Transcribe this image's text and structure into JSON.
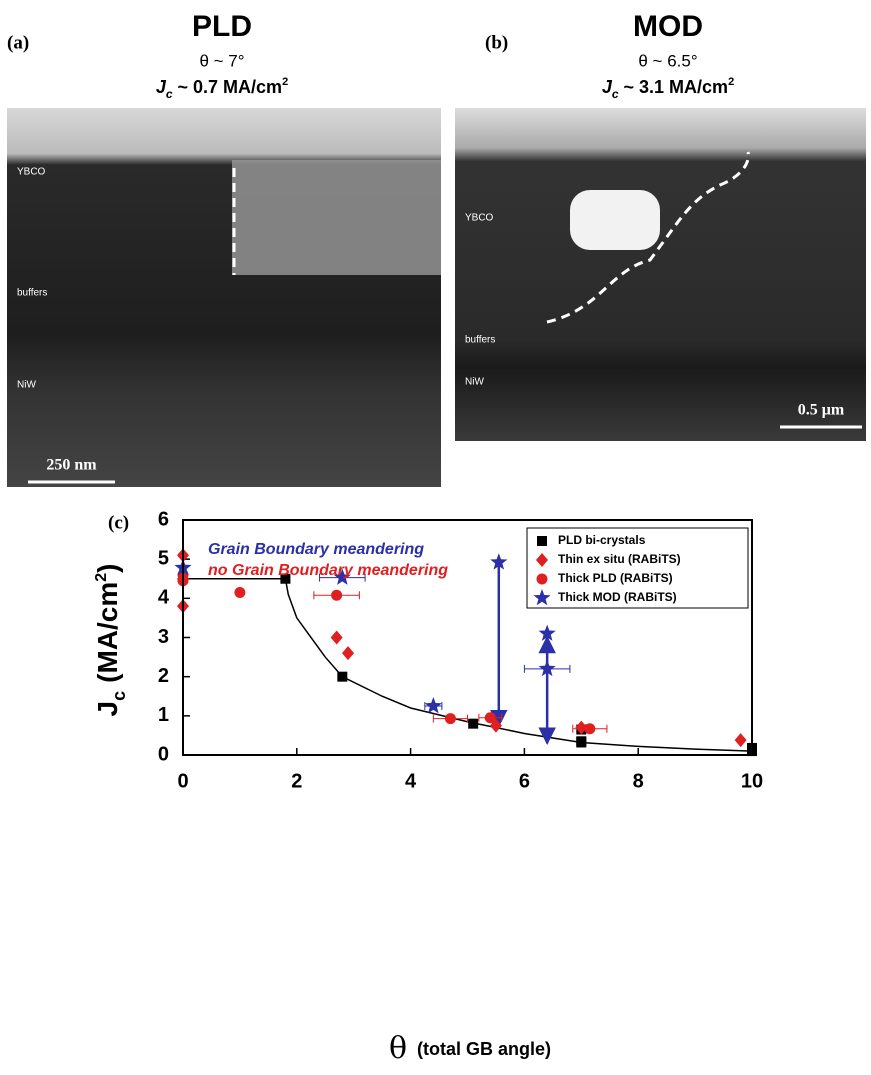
{
  "panels": [
    {
      "label": "(a)",
      "title": "PLD",
      "angle": "θ ~ 7°",
      "jc": [
        "J",
        "c",
        " ~ 0.7 MA/cm",
        "2"
      ],
      "layers": [
        "YBCO",
        "buffers",
        "NiW"
      ],
      "scale": "250 nm"
    },
    {
      "label": "(b)",
      "title": "MOD",
      "angle": "θ ~ 6.5°",
      "jc": [
        "J",
        "c",
        " ~ 3.1 MA/cm",
        "2"
      ],
      "layers": [
        "YBCO",
        "buffers",
        "NiW"
      ],
      "scale": "0.5 μm"
    }
  ],
  "chart_data": {
    "type": "scatter",
    "panel_label": "(c)",
    "xlabel_parts": [
      "θ",
      "(total GB angle)"
    ],
    "ylabel_parts": [
      "J",
      "c",
      "(MA/cm",
      "2",
      ")"
    ],
    "annotations": [
      {
        "text": "Grain Boundary meandering",
        "color": "#2b2fa8"
      },
      {
        "text": "no Grain Boundary meandering",
        "color": "#e02020"
      }
    ],
    "xlim": [
      0,
      10
    ],
    "ylim": [
      0,
      6
    ],
    "xticks": [
      0,
      2,
      4,
      6,
      8,
      10
    ],
    "yticks": [
      0,
      1,
      2,
      3,
      4,
      5,
      6
    ],
    "legend": "upper right",
    "curve": {
      "color": "#000000",
      "x": [
        0,
        1.8,
        1.85,
        2,
        2.5,
        2.8,
        3.5,
        4,
        5,
        6,
        7,
        8,
        9,
        10
      ],
      "values": [
        4.5,
        4.5,
        4.1,
        3.5,
        2.5,
        2.0,
        1.5,
        1.2,
        0.85,
        0.55,
        0.32,
        0.22,
        0.15,
        0.1
      ]
    },
    "series": [
      {
        "name": "PLD bi-crystals",
        "color": "#000000",
        "marker": "square",
        "x": [
          1.8,
          2.8,
          5.1,
          7.0,
          7.0,
          7.0,
          10,
          10
        ],
        "values": [
          4.5,
          2.0,
          0.8,
          0.65,
          0.35,
          0.32,
          0.18,
          0.1
        ]
      },
      {
        "name": "Thin ex situ (RABiTS)",
        "color": "#e02020",
        "marker": "diamond",
        "x": [
          0,
          0,
          0,
          2.7,
          2.9,
          5.5,
          7.0,
          9.8
        ],
        "values": [
          5.1,
          4.5,
          3.8,
          3.0,
          2.6,
          0.75,
          0.7,
          0.38
        ]
      },
      {
        "name": "Thick PLD (RABiTS)",
        "color": "#e02020",
        "marker": "circle",
        "x": [
          0,
          0,
          1.0,
          2.7,
          4.7,
          5.4,
          7.15
        ],
        "values": [
          4.6,
          4.45,
          4.15,
          4.08,
          0.93,
          0.95,
          0.67
        ],
        "xerr": [
          null,
          null,
          null,
          0.4,
          0.3,
          0.2,
          0.3
        ]
      },
      {
        "name": "Thick MOD (RABiTS)",
        "color": "#2b2fa8",
        "marker": "star",
        "x": [
          0,
          2.8,
          5.55,
          6.4,
          6.4,
          4.4
        ],
        "values": [
          4.78,
          4.53,
          4.92,
          3.1,
          2.2,
          1.25
        ],
        "xerr": [
          null,
          0.4,
          null,
          null,
          0.4,
          0.15
        ]
      }
    ],
    "arrows": [
      {
        "color": "#2b2fa8",
        "x": 5.55,
        "from": 4.85,
        "to": 0.75
      },
      {
        "color": "#2b2fa8",
        "x": 6.4,
        "from": 2.2,
        "to": 3.0
      },
      {
        "color": "#2b2fa8",
        "x": 6.4,
        "from": 2.2,
        "to": 0.3
      }
    ]
  }
}
